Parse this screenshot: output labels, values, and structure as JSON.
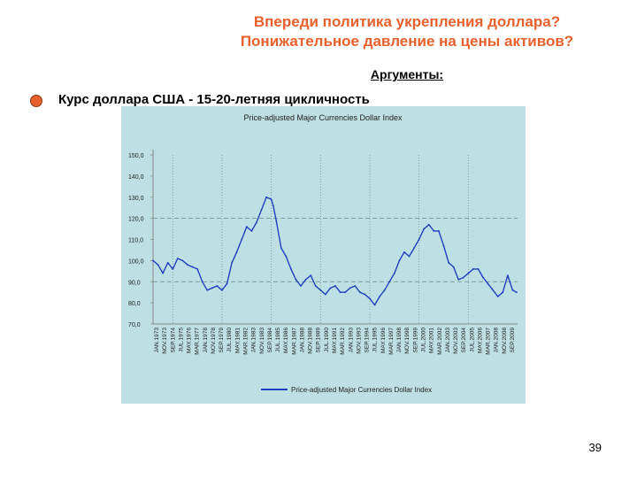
{
  "slide": {
    "title_line1": "Впереди политика укрепления доллара?",
    "title_line2": "Понижательное давление на цены активов?",
    "subtitle": "Аргументы:",
    "bullet": "Курс доллара США - 15-20-летняя цикличность",
    "page_number": "39"
  },
  "colors": {
    "title": "#e8602c",
    "chart_bg": "#bedfe3",
    "line": "#1f3fbf",
    "grid": "#6f8a8e"
  },
  "chart_data": {
    "type": "line",
    "title": "Price-adjusted Major Currencies Dollar Index",
    "ylim": [
      70,
      150
    ],
    "y_ticks": [
      "150,0",
      "140,0",
      "130,0",
      "120,0",
      "110,0",
      "100,0",
      "90,0",
      "80,0",
      "70,0"
    ],
    "grid": "dashed horizontal at 120 and 90, dotted vertical lines",
    "legend": "bottom",
    "x_tick_labels": [
      "JAN.1973",
      "NOV.1973",
      "SEP.1974",
      "JUL.1975",
      "MAY.1976",
      "MAR.1977",
      "JAN.1978",
      "NOV.1978",
      "SEP.1979",
      "JUL.1980",
      "MAY.1981",
      "MAR.1982",
      "JAN.1983",
      "NOV.1983",
      "SEP.1984",
      "JUL.1985",
      "MAY.1986",
      "MAR.1987",
      "JAN.1988",
      "NOV.1988",
      "SEP.1989",
      "JUL.1990",
      "MAY.1991",
      "MAR.1992",
      "JAN.1993",
      "NOV.1993",
      "SEP.1994",
      "JUL.1995",
      "MAY.1996",
      "MAR.1997",
      "JAN.1998",
      "NOV.1998",
      "SEP.1999",
      "JUL.2000",
      "MAY.2001",
      "MAR.2002",
      "JAN.2003",
      "NOV.2003",
      "SEP.2004",
      "JUL.2005",
      "MAY.2006",
      "MAR.2007",
      "JAN.2008",
      "NOV.2008",
      "SEP.2009"
    ],
    "series": [
      {
        "name": "Price-adjusted Major Currencies Dollar Index",
        "x": [
          1973.0,
          1973.5,
          1974.0,
          1974.5,
          1975.0,
          1975.5,
          1976.0,
          1976.5,
          1977.0,
          1977.5,
          1978.0,
          1978.5,
          1979.0,
          1979.5,
          1980.0,
          1980.5,
          1981.0,
          1981.5,
          1982.0,
          1982.5,
          1983.0,
          1983.5,
          1984.0,
          1984.5,
          1985.0,
          1985.2,
          1985.5,
          1986.0,
          1986.5,
          1987.0,
          1987.5,
          1988.0,
          1988.5,
          1989.0,
          1989.5,
          1990.0,
          1990.5,
          1991.0,
          1991.5,
          1992.0,
          1992.5,
          1993.0,
          1993.5,
          1994.0,
          1994.5,
          1995.0,
          1995.5,
          1996.0,
          1996.5,
          1997.0,
          1997.5,
          1998.0,
          1998.5,
          1999.0,
          1999.5,
          2000.0,
          2000.5,
          2001.0,
          2001.5,
          2002.0,
          2002.5,
          2003.0,
          2003.5,
          2004.0,
          2004.5,
          2005.0,
          2005.5,
          2006.0,
          2006.5,
          2007.0,
          2007.5,
          2008.0,
          2008.5,
          2009.0,
          2009.5,
          2009.9
        ],
        "values": [
          100,
          98,
          94,
          99,
          96,
          101,
          100,
          98,
          97,
          96,
          90,
          86,
          87,
          88,
          86,
          89,
          99,
          104,
          110,
          116,
          114,
          118,
          124,
          130,
          129,
          126,
          119,
          106,
          102,
          96,
          91,
          88,
          91,
          93,
          88,
          86,
          84,
          87,
          88,
          85,
          85,
          87,
          88,
          85,
          84,
          82,
          79,
          83,
          86,
          90,
          94,
          100,
          104,
          102,
          106,
          110,
          115,
          117,
          114,
          114,
          107,
          99,
          97,
          91,
          92,
          94,
          96,
          96,
          92,
          89,
          86,
          83,
          85,
          93,
          86,
          85
        ]
      }
    ]
  }
}
